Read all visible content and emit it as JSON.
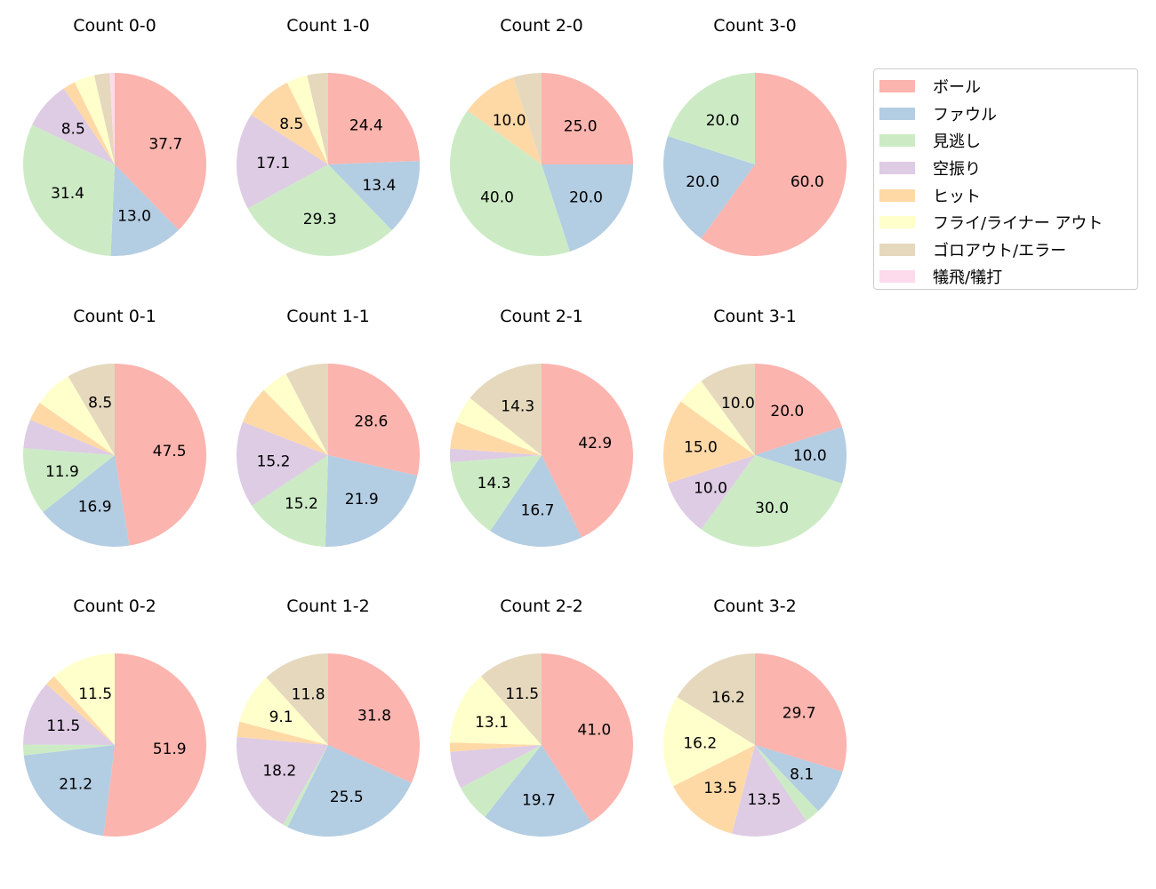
{
  "chart_data": {
    "type": "pie",
    "legend_position": "right",
    "categories": [
      "ボール",
      "ファウル",
      "見逃し",
      "空振り",
      "ヒット",
      "フライ/ライナー アウト",
      "ゴロアウト/エラー",
      "犠飛/犠打"
    ],
    "colors": [
      "#fbb4ae",
      "#b3cde3",
      "#ccebc5",
      "#decbe4",
      "#fed9a6",
      "#ffffcc",
      "#e5d8bd",
      "#fddaec"
    ],
    "pies": [
      {
        "title": "Count 0-0",
        "values": [
          37.7,
          13.0,
          31.4,
          8.5,
          2.2,
          3.6,
          2.7,
          0.9
        ]
      },
      {
        "title": "Count 1-0",
        "values": [
          24.4,
          13.4,
          29.3,
          17.1,
          8.5,
          3.7,
          3.7,
          0
        ]
      },
      {
        "title": "Count 2-0",
        "values": [
          25.0,
          20.0,
          40.0,
          0,
          10.0,
          0,
          5.0,
          0
        ]
      },
      {
        "title": "Count 3-0",
        "values": [
          60.0,
          20.0,
          20.0,
          0,
          0,
          0,
          0,
          0
        ]
      },
      {
        "title": "Count 0-1",
        "values": [
          47.5,
          16.9,
          11.9,
          5.1,
          3.4,
          6.8,
          8.5,
          0
        ]
      },
      {
        "title": "Count 1-1",
        "values": [
          28.6,
          21.9,
          15.2,
          15.2,
          6.7,
          4.8,
          7.6,
          0
        ]
      },
      {
        "title": "Count 2-1",
        "values": [
          42.9,
          16.7,
          14.3,
          2.4,
          4.8,
          4.8,
          14.3,
          0
        ]
      },
      {
        "title": "Count 3-1",
        "values": [
          20.0,
          10.0,
          30.0,
          10.0,
          15.0,
          5.0,
          10.0,
          0
        ]
      },
      {
        "title": "Count 0-2",
        "values": [
          51.9,
          21.2,
          1.9,
          11.5,
          1.9,
          11.5,
          0,
          0
        ]
      },
      {
        "title": "Count 1-2",
        "values": [
          31.8,
          25.5,
          0.9,
          18.2,
          2.7,
          9.1,
          11.8,
          0
        ]
      },
      {
        "title": "Count 2-2",
        "values": [
          41.0,
          19.7,
          6.6,
          6.6,
          1.6,
          13.1,
          11.5,
          0
        ]
      },
      {
        "title": "Count 3-2",
        "values": [
          29.7,
          8.1,
          2.7,
          13.5,
          13.5,
          16.2,
          16.2,
          0
        ]
      }
    ]
  }
}
